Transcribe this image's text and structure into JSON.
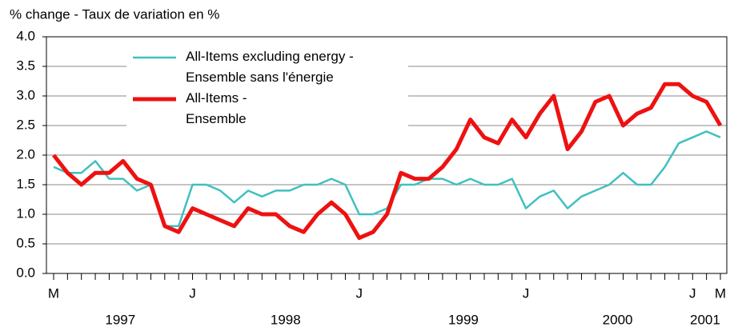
{
  "chart_data": {
    "type": "line",
    "title": "% change - Taux de variation en %",
    "categories": [
      "M",
      null,
      null,
      null,
      null,
      null,
      null,
      null,
      null,
      null,
      "J",
      null,
      null,
      null,
      null,
      null,
      null,
      null,
      null,
      null,
      null,
      null,
      "J",
      null,
      null,
      null,
      null,
      null,
      null,
      null,
      null,
      null,
      null,
      null,
      "J",
      null,
      null,
      null,
      null,
      null,
      null,
      null,
      null,
      null,
      null,
      null,
      "J",
      null,
      "M"
    ],
    "years": [
      "1997",
      "1998",
      "1999",
      "2000",
      "2001"
    ],
    "series": [
      {
        "name": "All-Items excluding energy -\nEnsemble sans l'énergie",
        "color": "#40c0c0",
        "values": [
          1.8,
          1.7,
          1.7,
          1.9,
          1.6,
          1.6,
          1.4,
          1.5,
          0.8,
          0.8,
          1.5,
          1.5,
          1.4,
          1.2,
          1.4,
          1.3,
          1.4,
          1.4,
          1.5,
          1.5,
          1.6,
          1.5,
          1.0,
          1.0,
          1.1,
          1.5,
          1.5,
          1.6,
          1.6,
          1.5,
          1.6,
          1.5,
          1.5,
          1.6,
          1.1,
          1.3,
          1.4,
          1.1,
          1.3,
          1.4,
          1.5,
          1.7,
          1.5,
          1.5,
          1.8,
          2.2,
          2.3,
          2.4,
          2.3
        ]
      },
      {
        "name": "All-Items -\nEnsemble",
        "color": "#ee1111",
        "values": [
          2.0,
          1.7,
          1.5,
          1.7,
          1.7,
          1.9,
          1.6,
          1.5,
          0.8,
          0.7,
          1.1,
          1.0,
          0.9,
          0.8,
          1.1,
          1.0,
          1.0,
          0.8,
          0.7,
          1.0,
          1.2,
          1.0,
          0.6,
          0.7,
          1.0,
          1.7,
          1.6,
          1.6,
          1.8,
          2.1,
          2.6,
          2.3,
          2.2,
          2.6,
          2.3,
          2.7,
          3.0,
          2.1,
          2.4,
          2.9,
          3.0,
          2.5,
          2.7,
          2.8,
          3.2,
          3.2,
          3.0,
          2.9,
          2.5
        ]
      }
    ],
    "ylim": [
      0,
      4
    ],
    "yticks": [
      {
        "value": 0,
        "label": "0.0"
      },
      0.5,
      {
        "value": 1,
        "label": "1.0"
      },
      1.5,
      {
        "value": 2,
        "label": "2.0"
      },
      2.5,
      {
        "value": 3,
        "label": "3.0"
      },
      3.5,
      {
        "value": 4,
        "label": "4.0"
      }
    ],
    "grid": true
  }
}
